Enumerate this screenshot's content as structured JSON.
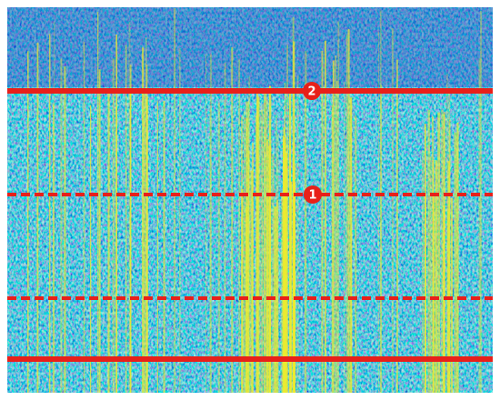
{
  "markers": [
    {
      "label": "1"
    },
    {
      "label": "2"
    }
  ]
}
